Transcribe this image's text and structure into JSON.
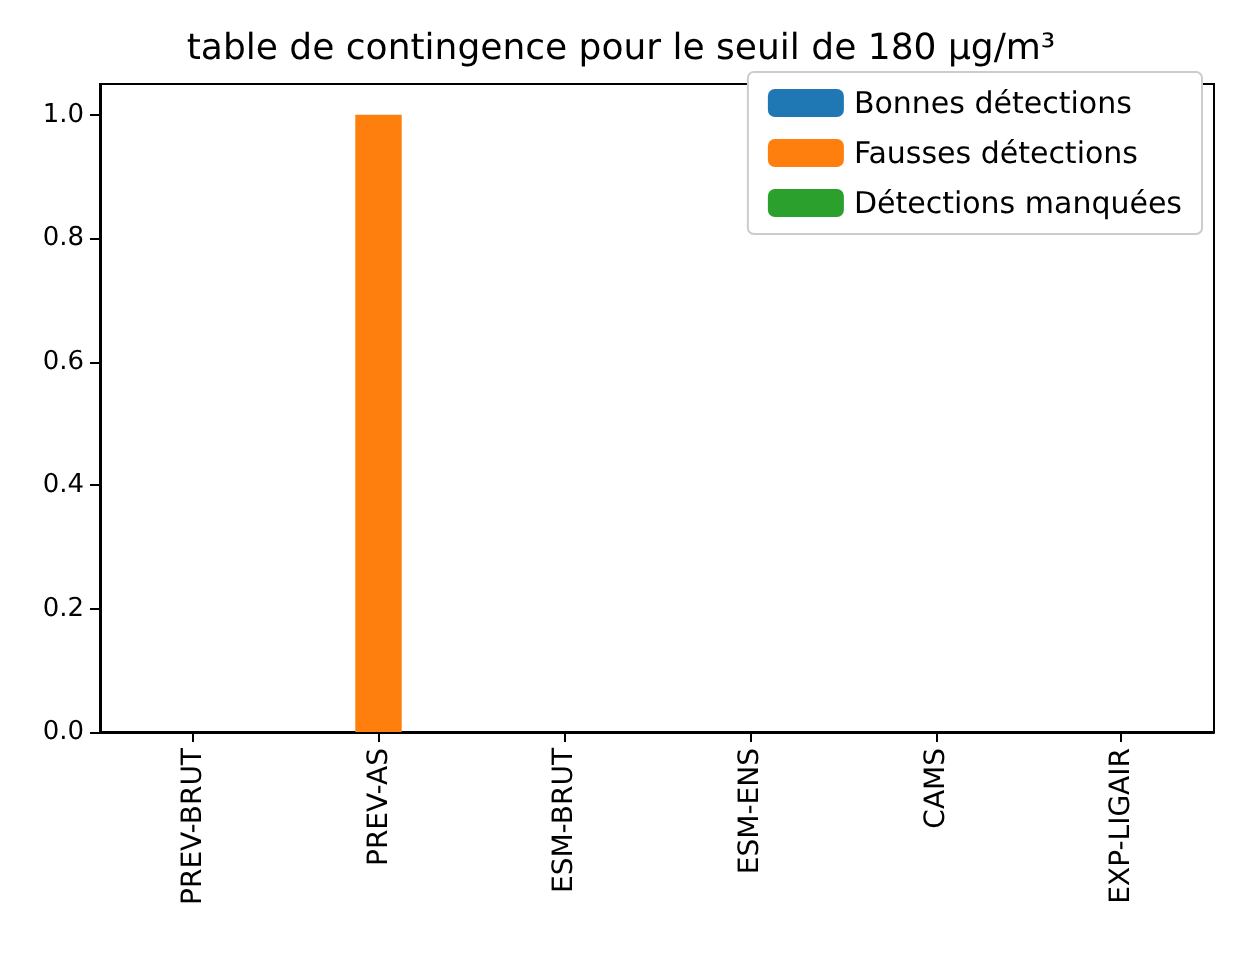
{
  "chart_data": {
    "type": "bar",
    "title": "table de contingence pour le seuil de 180 µg/m³",
    "categories": [
      "PREV-BRUT",
      "PREV-AS",
      "ESM-BRUT",
      "ESM-ENS",
      "CAMS",
      "EXP-LIGAIR"
    ],
    "series": [
      {
        "name": "Bonnes détections",
        "color": "#1f77b4",
        "values": [
          0,
          0,
          0,
          0,
          0,
          0
        ]
      },
      {
        "name": "Fausses détections",
        "color": "#ff7f0e",
        "values": [
          0,
          1,
          0,
          0,
          0,
          0
        ]
      },
      {
        "name": "Détections manquées",
        "color": "#2ca02c",
        "values": [
          0,
          0,
          0,
          0,
          0,
          0
        ]
      }
    ],
    "ylim": [
      0,
      1.05
    ],
    "yticks": [
      {
        "value": 0,
        "label": "0.0"
      },
      {
        "value": 0.2,
        "label": "0.2"
      },
      {
        "value": 0.4,
        "label": "0.4"
      },
      {
        "value": 0.6,
        "label": "0.6"
      },
      {
        "value": 0.8,
        "label": "0.8"
      },
      {
        "value": 1,
        "label": "1.0"
      }
    ],
    "grid": false,
    "legend": "top right"
  }
}
